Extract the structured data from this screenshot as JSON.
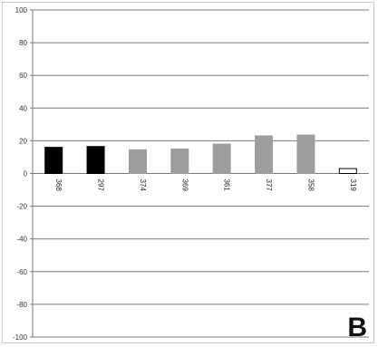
{
  "panel_label": "B",
  "chart_data": {
    "type": "bar",
    "title": "",
    "xlabel": "",
    "ylabel": "",
    "ylim": [
      -100,
      100
    ],
    "yticks": [
      100,
      80,
      60,
      40,
      20,
      0,
      -20,
      -40,
      -60,
      -80,
      -100
    ],
    "grid": true,
    "legend": "none",
    "categories": [
      "368",
      "297",
      "374",
      "369",
      "361",
      "377",
      "358",
      "319"
    ],
    "values": [
      16,
      16.5,
      14.5,
      15,
      18,
      23,
      23.5,
      3
    ],
    "bar_colors": [
      "#000000",
      "#000000",
      "#9d9d9d",
      "#9d9d9d",
      "#9d9d9d",
      "#9d9d9d",
      "#9d9d9d",
      "#ffffff"
    ],
    "bar_edge_colors": [
      "#000000",
      "#000000",
      "#9d9d9d",
      "#9d9d9d",
      "#9d9d9d",
      "#9d9d9d",
      "#9d9d9d",
      "#000000"
    ]
  }
}
